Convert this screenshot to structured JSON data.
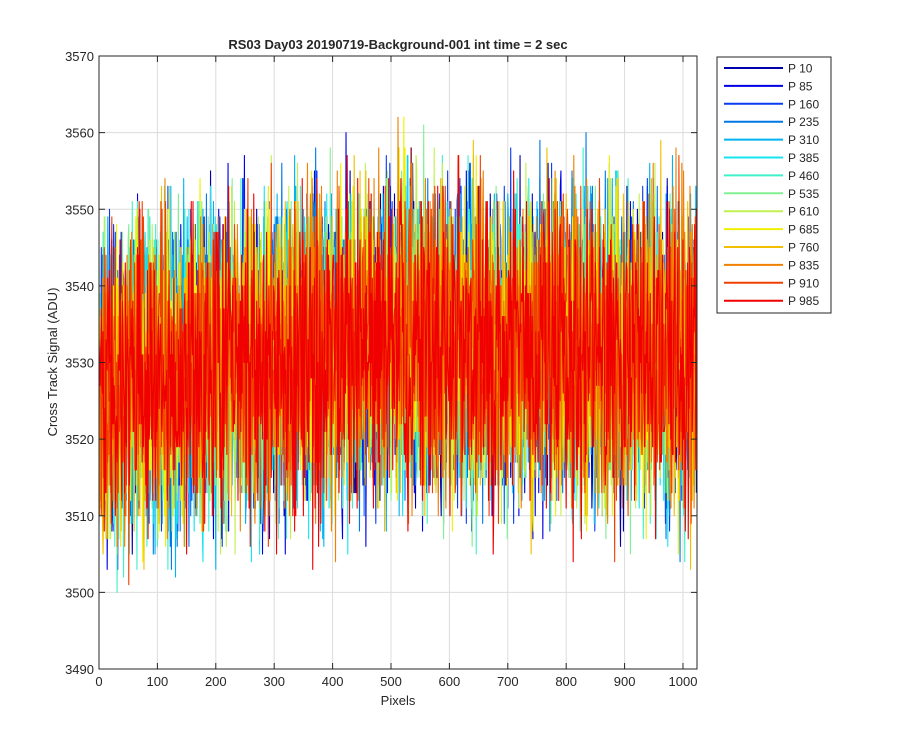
{
  "chart_data": {
    "type": "line",
    "title": "RS03 Day03 20190719-Background-001 int time = 2 sec",
    "xlabel": "Pixels",
    "ylabel": "Cross Track Signal (ADU)",
    "xlim": [
      0,
      1024
    ],
    "ylim": [
      3490,
      3570
    ],
    "xticks": [
      0,
      100,
      200,
      300,
      400,
      500,
      600,
      700,
      800,
      900,
      1000
    ],
    "yticks": [
      3490,
      3500,
      3510,
      3520,
      3530,
      3540,
      3550,
      3560,
      3570
    ],
    "grid": true,
    "legend_position": "outside-top-right",
    "noise_model": {
      "points_per_series": 1024,
      "mean_start": 3527,
      "mean_mid": 3533,
      "mean_end": 3531,
      "noise_amplitude": 12
    },
    "series": [
      {
        "name": "P 10",
        "color": "#0000aa"
      },
      {
        "name": "P 85",
        "color": "#0000e6"
      },
      {
        "name": "P 160",
        "color": "#0a3cf0"
      },
      {
        "name": "P 235",
        "color": "#0078e6"
      },
      {
        "name": "P 310",
        "color": "#00b4f0"
      },
      {
        "name": "P 385",
        "color": "#14e6f0"
      },
      {
        "name": "P 460",
        "color": "#40f0c8"
      },
      {
        "name": "P 535",
        "color": "#80f090"
      },
      {
        "name": "P 610",
        "color": "#c0f050"
      },
      {
        "name": "P 685",
        "color": "#f0f000"
      },
      {
        "name": "P 760",
        "color": "#f0c000"
      },
      {
        "name": "P 835",
        "color": "#f08000"
      },
      {
        "name": "P 910",
        "color": "#f04000"
      },
      {
        "name": "P 985",
        "color": "#f00000"
      }
    ]
  }
}
